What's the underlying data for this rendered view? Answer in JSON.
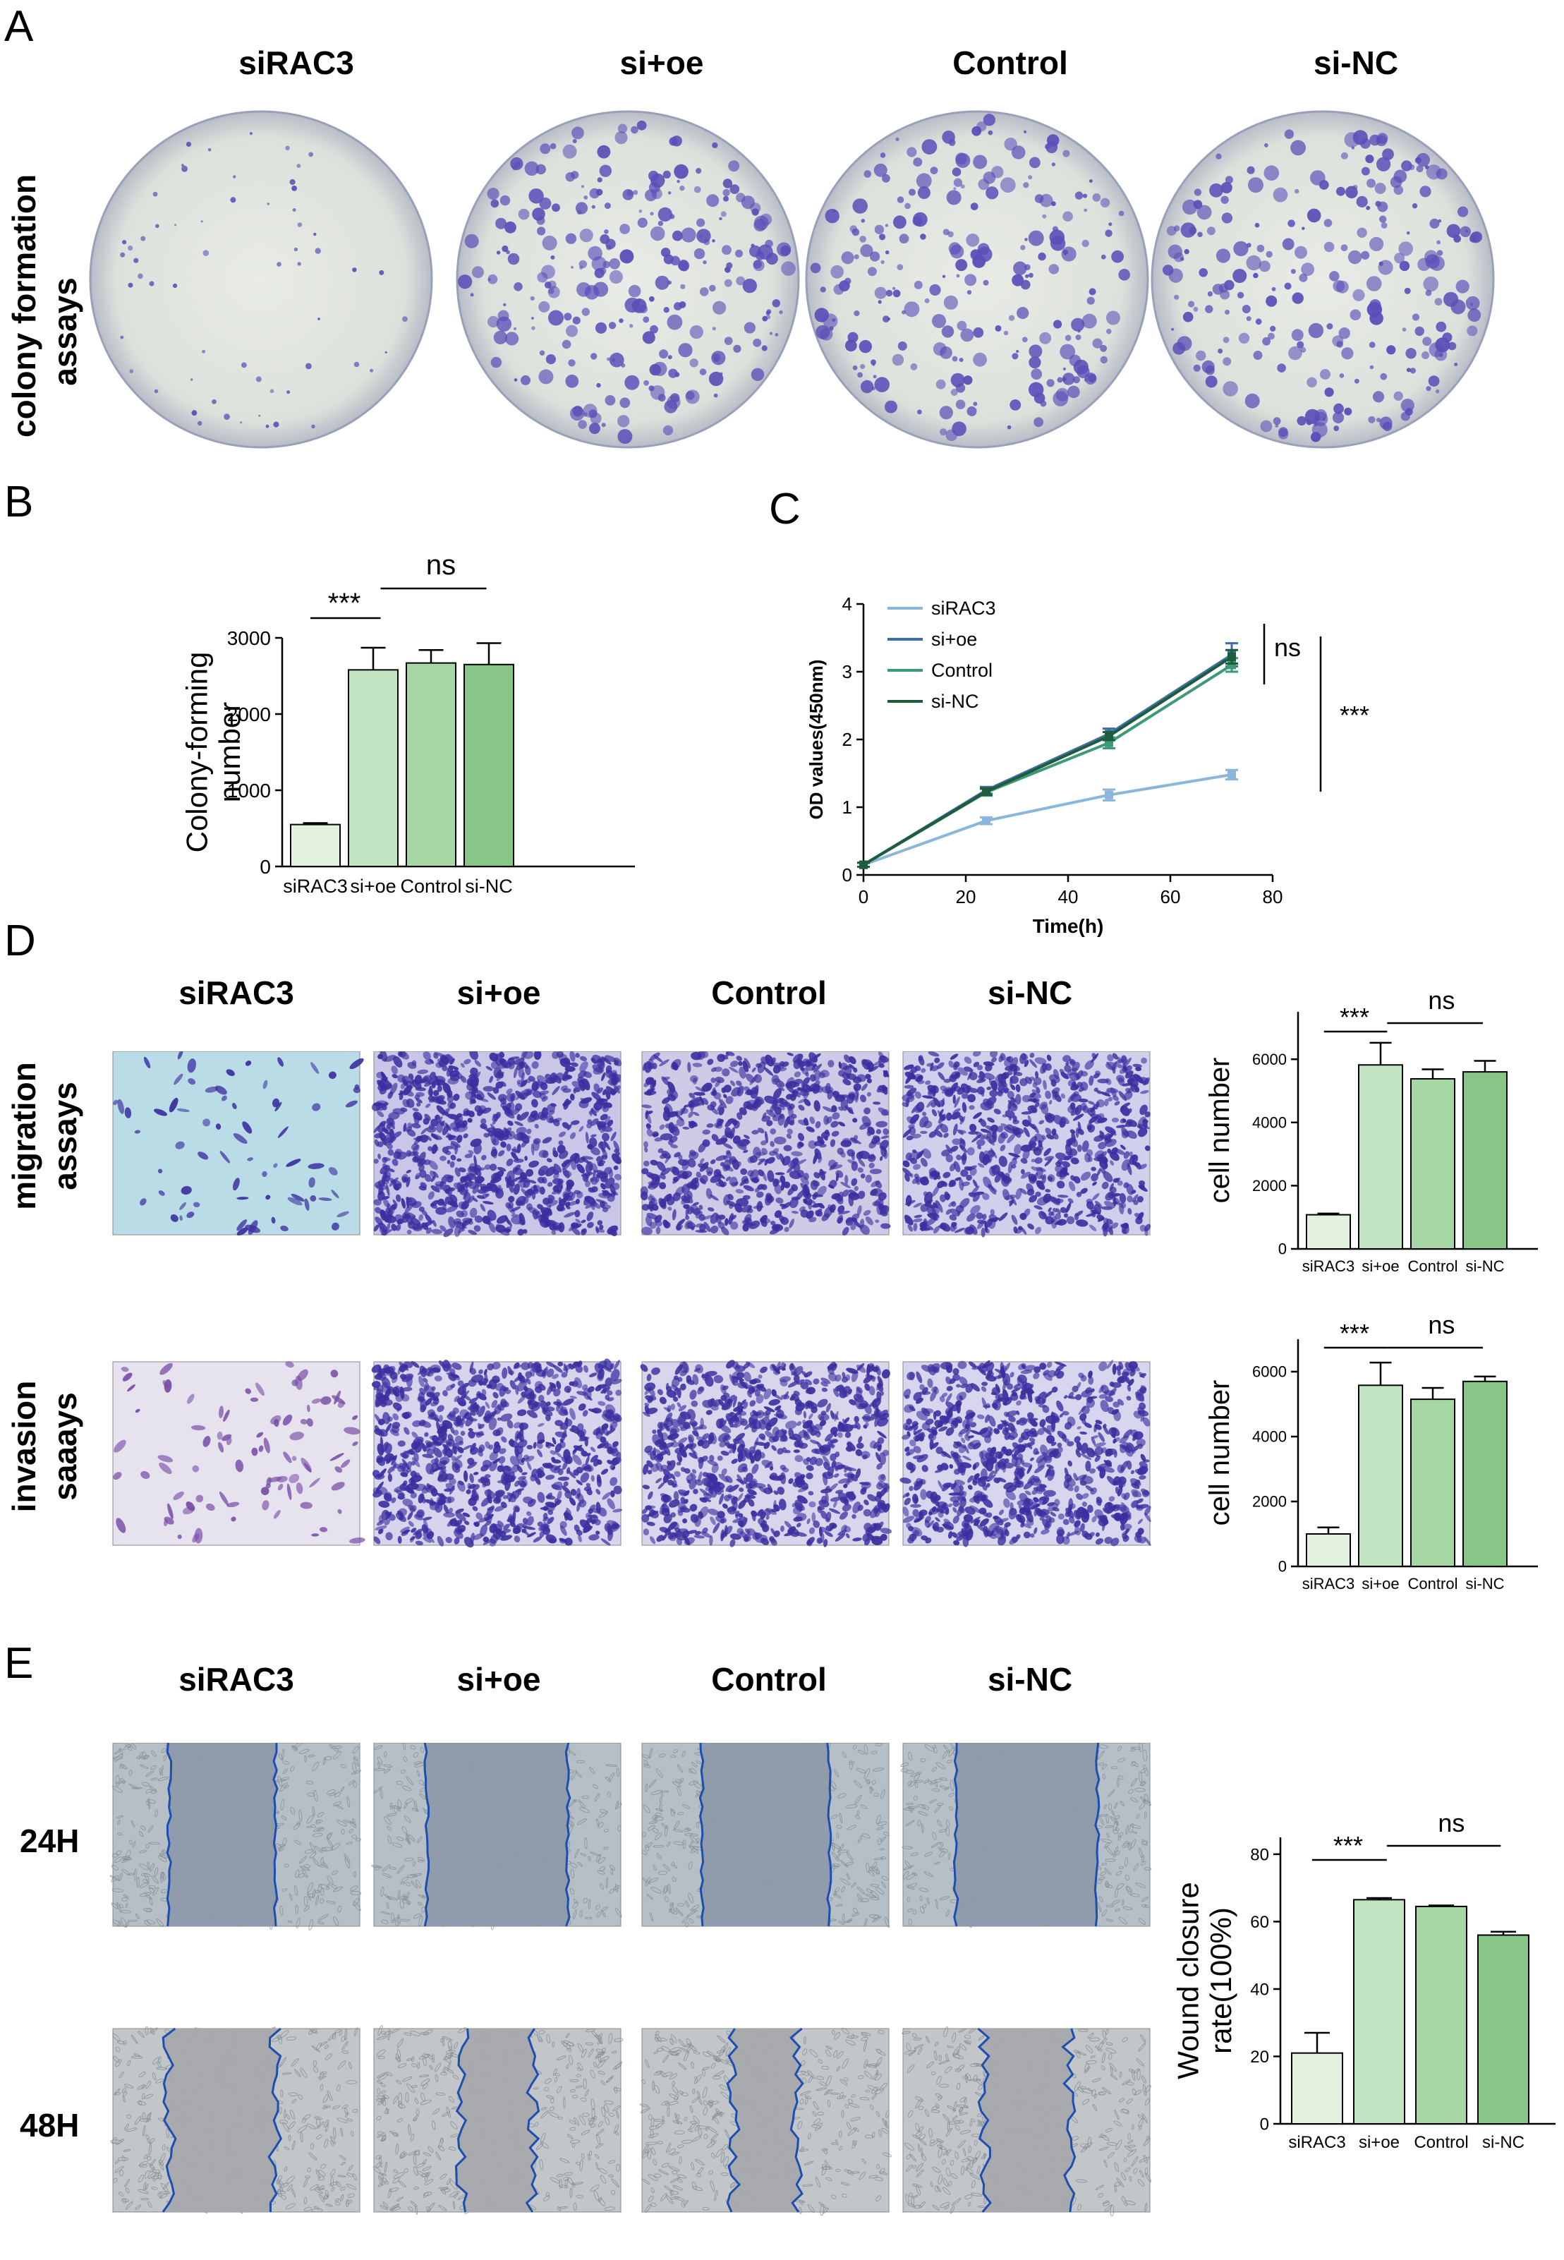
{
  "groups": [
    "siRAC3",
    "si+oe",
    "Control",
    "si-NC"
  ],
  "panels": {
    "A": {
      "letter": "A",
      "row_label_line1": "colony formation",
      "row_label_line2": "assays"
    },
    "B": {
      "letter": "B"
    },
    "C": {
      "letter": "C"
    },
    "D": {
      "letter": "D",
      "row1_line1": "migration",
      "row1_line2": "assays",
      "row2_line1": "invasion",
      "row2_line2": "saaays"
    },
    "E": {
      "letter": "E",
      "row1": "24H",
      "row2": "48H"
    }
  },
  "colors": {
    "bar_fills": [
      "#e3f1df",
      "#c3e4c2",
      "#a6d7a5",
      "#87c686"
    ],
    "line_siRAC3": "#8ab6dc",
    "line_sioe": "#3d6fa6",
    "line_Control": "#3d9b73",
    "line_siNC": "#1f5c3c",
    "crystal_violet": "#5a4fb8",
    "wound_edge": "#1c4fb0"
  },
  "chart_data": [
    {
      "id": "B",
      "type": "bar",
      "categories": [
        "siRAC3",
        "si+oe",
        "Control",
        "si-NC"
      ],
      "values": [
        550,
        2580,
        2670,
        2650
      ],
      "errors": [
        20,
        290,
        170,
        280
      ],
      "ylabel_line1": "Colony-forming",
      "ylabel_line2": "number",
      "ylim": [
        0,
        3000
      ],
      "yticks": [
        "0",
        "1000",
        "2000",
        "3000"
      ],
      "annotations": [
        "***",
        "ns"
      ]
    },
    {
      "id": "C",
      "type": "line",
      "x": [
        0,
        24,
        48,
        72
      ],
      "series": [
        {
          "name": "siRAC3",
          "values": [
            0.15,
            0.8,
            1.18,
            1.48
          ],
          "errors": [
            0.03,
            0.05,
            0.08,
            0.07
          ]
        },
        {
          "name": "si+oe",
          "values": [
            0.15,
            1.25,
            2.08,
            3.25
          ],
          "errors": [
            0.03,
            0.05,
            0.08,
            0.17
          ]
        },
        {
          "name": "Control",
          "values": [
            0.15,
            1.22,
            1.95,
            3.1
          ],
          "errors": [
            0.03,
            0.05,
            0.08,
            0.1
          ]
        },
        {
          "name": "si-NC",
          "values": [
            0.15,
            1.23,
            2.05,
            3.22
          ],
          "errors": [
            0.03,
            0.05,
            0.06,
            0.1
          ]
        }
      ],
      "xlabel": "Time(h)",
      "ylabel": "OD values(450nm)",
      "xlim": [
        0,
        80
      ],
      "ylim": [
        0,
        4
      ],
      "xticks": [
        "0",
        "20",
        "40",
        "60",
        "80"
      ],
      "yticks": [
        "0",
        "1",
        "2",
        "3",
        "4"
      ],
      "legend_placement": "top-left",
      "annotations": [
        "ns",
        "***"
      ]
    },
    {
      "id": "D-migration",
      "type": "bar",
      "categories": [
        "siRAC3",
        "si+oe",
        "Control",
        "si-NC"
      ],
      "values": [
        1080,
        5820,
        5380,
        5600
      ],
      "errors": [
        40,
        700,
        300,
        350
      ],
      "ylabel": "cell number",
      "ylim": [
        0,
        7500
      ],
      "yticks": [
        "0",
        "2000",
        "4000",
        "6000"
      ],
      "annotations": [
        "***",
        "ns"
      ]
    },
    {
      "id": "D-invasion",
      "type": "bar",
      "categories": [
        "siRAC3",
        "si+oe",
        "Control",
        "si-NC"
      ],
      "values": [
        1000,
        5580,
        5150,
        5700
      ],
      "errors": [
        200,
        700,
        350,
        150
      ],
      "ylabel": "cell number",
      "ylim": [
        0,
        7000
      ],
      "yticks": [
        "0",
        "2000",
        "4000",
        "6000"
      ],
      "annotations": [
        "***",
        "ns"
      ]
    },
    {
      "id": "E",
      "type": "bar",
      "categories": [
        "siRAC3",
        "si+oe",
        "Control",
        "si-NC"
      ],
      "values": [
        21,
        66.5,
        64.5,
        56
      ],
      "errors": [
        6,
        0.5,
        0.3,
        1
      ],
      "ylabel_line1": "Wound closure",
      "ylabel_line2": "rate(100%)",
      "ylim": [
        0,
        85
      ],
      "yticks": [
        "0",
        "20",
        "40",
        "60",
        "80"
      ],
      "annotations": [
        "***",
        "ns"
      ]
    }
  ]
}
